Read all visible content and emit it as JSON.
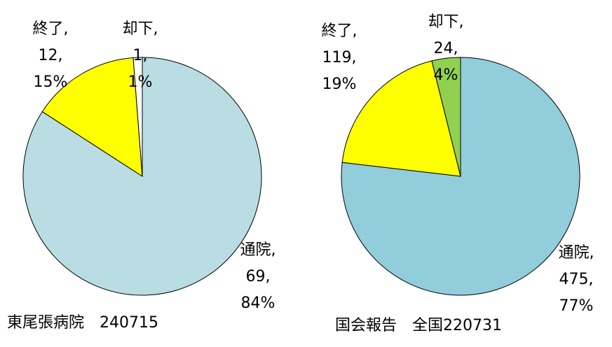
{
  "chart_data": [
    {
      "type": "pie",
      "title": "東尾張病院　240715",
      "categories": [
        "通院,",
        "終了,",
        "却下,"
      ],
      "values": [
        69,
        12,
        1
      ],
      "value_labels": [
        "69,",
        "12,",
        "1,"
      ],
      "percent_labels": [
        "84%",
        "15%",
        "1%"
      ],
      "colors": [
        "#b9dde3",
        "#ffff00",
        "#ffffff"
      ]
    },
    {
      "type": "pie",
      "title": "国会報告　全国220731",
      "categories": [
        "通院,",
        "終了,",
        "却下,"
      ],
      "values": [
        475,
        119,
        24
      ],
      "value_labels": [
        "475,",
        "119,",
        "24,"
      ],
      "percent_labels": [
        "77%",
        "19%",
        "4%"
      ],
      "colors": [
        "#92cddc",
        "#ffff00",
        "#92d050"
      ]
    }
  ]
}
